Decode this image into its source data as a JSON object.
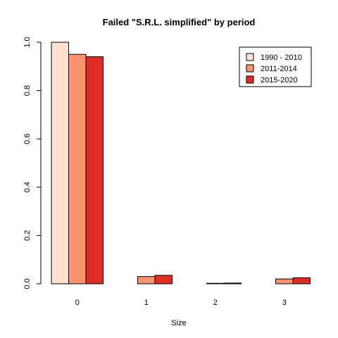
{
  "chart_data": {
    "type": "bar",
    "title": "Failed \"S.R.L. simplified\" by period",
    "xlabel": "Size",
    "ylabel": "",
    "categories": [
      "0",
      "1",
      "2",
      "3"
    ],
    "yticks": [
      "0.0",
      "0.2",
      "0.4",
      "0.6",
      "0.8",
      "1.0"
    ],
    "ylim": [
      0,
      1.0
    ],
    "legend_position": "top-right",
    "series": [
      {
        "name": "1990 - 2010",
        "color": "#fee0d2",
        "values": [
          1.0,
          0.0,
          0.0,
          0.0
        ]
      },
      {
        "name": "2011-2014",
        "color": "#fc9272",
        "values": [
          0.95,
          0.03,
          0.002,
          0.02
        ]
      },
      {
        "name": "2015-2020",
        "color": "#de2d26",
        "values": [
          0.94,
          0.035,
          0.003,
          0.025
        ]
      }
    ],
    "grid": false
  }
}
